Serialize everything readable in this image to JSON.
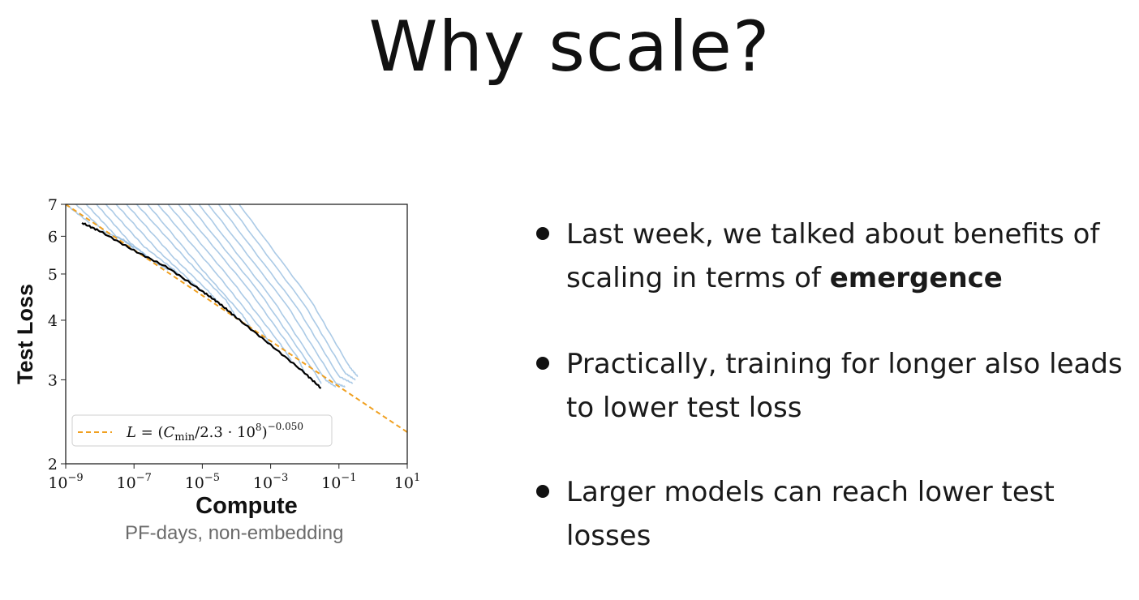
{
  "slide": {
    "title": "Why scale?",
    "bullets": [
      {
        "text": "Last week, we talked about benefits of scaling in terms of ",
        "bold": "emergence"
      },
      {
        "text": "Practically, training for longer also leads to lower test loss",
        "bold": ""
      },
      {
        "text": "Larger models can reach lower test losses",
        "bold": ""
      }
    ]
  },
  "chart_data": {
    "type": "line",
    "xlabel": "Compute",
    "xsublabel": "PF-days, non-embedding",
    "ylabel": "Test Loss",
    "xscale": "log",
    "yscale": "log",
    "xlim": [
      1e-09,
      10
    ],
    "ylim": [
      2,
      7
    ],
    "xticks": [
      1e-09,
      1e-07,
      1e-05,
      0.001,
      0.1,
      10
    ],
    "xtick_labels": [
      {
        "base": "10",
        "exp": "−9"
      },
      {
        "base": "10",
        "exp": "−7"
      },
      {
        "base": "10",
        "exp": "−5"
      },
      {
        "base": "10",
        "exp": "−3"
      },
      {
        "base": "10",
        "exp": "−1"
      },
      {
        "base": "10",
        "exp": "1"
      }
    ],
    "yticks": [
      2,
      3,
      4,
      5,
      6,
      7
    ],
    "ytick_labels": [
      "2",
      "3",
      "4",
      "5",
      "6",
      "7"
    ],
    "legend": {
      "placement": "lower-left",
      "entries": [
        {
          "name": "fit",
          "label": "L = (C_min/2.3 · 10^8)^−0.050",
          "style": "dashed",
          "color": "#f0a020"
        }
      ]
    },
    "colors": {
      "curves": "#8fb8dd",
      "frontier": "#000000",
      "fit": "#f0a020"
    },
    "series": [
      {
        "name": "fit",
        "x": [
          1e-09,
          10
        ],
        "y": [
          7.0,
          2.33
        ]
      },
      {
        "name": "frontier",
        "x": [
          3e-09,
          1e-08,
          1e-07,
          1e-06,
          1e-05,
          3e-05,
          0.0001,
          0.001,
          0.01,
          0.03
        ],
        "y": [
          6.4,
          6.15,
          5.6,
          5.15,
          4.6,
          4.35,
          4.05,
          3.55,
          3.1,
          2.88
        ]
      }
    ],
    "training_curves": [
      {
        "x": [
          1e-09,
          5e-09
        ],
        "y": [
          7.0,
          6.4
        ]
      },
      {
        "x": [
          2e-09,
          1.5e-08,
          5e-08,
          1e-07
        ],
        "y": [
          7.0,
          6.1,
          5.9,
          5.65
        ]
      },
      {
        "x": [
          4e-09,
          3e-08,
          1.5e-07,
          3e-07
        ],
        "y": [
          7.0,
          6.0,
          5.6,
          5.35
        ]
      },
      {
        "x": [
          8e-09,
          8e-08,
          4e-07,
          1e-06
        ],
        "y": [
          7.0,
          5.8,
          5.3,
          5.1
        ]
      },
      {
        "x": [
          1.5e-08,
          2e-07,
          1.5e-06,
          3e-06
        ],
        "y": [
          7.0,
          5.7,
          5.1,
          4.85
        ]
      },
      {
        "x": [
          3e-08,
          5e-07,
          5e-06,
          1e-05
        ],
        "y": [
          7.0,
          5.6,
          4.8,
          4.6
        ]
      },
      {
        "x": [
          6e-08,
          1.5e-06,
          1.5e-05,
          3e-05
        ],
        "y": [
          7.0,
          5.4,
          4.6,
          4.35
        ]
      },
      {
        "x": [
          1.2e-07,
          4e-06,
          5e-05,
          0.0001
        ],
        "y": [
          7.0,
          5.3,
          4.4,
          4.05
        ]
      },
      {
        "x": [
          2.5e-07,
          1e-05,
          0.00015,
          0.0003
        ],
        "y": [
          7.0,
          5.1,
          4.1,
          3.8
        ]
      },
      {
        "x": [
          5e-07,
          3e-05,
          0.0005,
          0.001
        ],
        "y": [
          7.0,
          4.95,
          3.85,
          3.55
        ]
      },
      {
        "x": [
          1e-06,
          8e-05,
          0.002,
          0.004
        ],
        "y": [
          7.0,
          4.8,
          3.55,
          3.3
        ]
      },
      {
        "x": [
          2e-06,
          0.0002,
          0.006,
          0.01
        ],
        "y": [
          7.0,
          4.7,
          3.35,
          3.1
        ]
      },
      {
        "x": [
          4e-06,
          0.0005,
          0.02,
          0.03
        ],
        "y": [
          7.0,
          4.55,
          3.1,
          2.95
        ]
      },
      {
        "x": [
          8e-06,
          0.0012,
          0.04,
          0.08
        ],
        "y": [
          7.0,
          4.4,
          3.0,
          2.9
        ]
      },
      {
        "x": [
          1.5e-05,
          0.003,
          0.08,
          0.15
        ],
        "y": [
          7.0,
          4.3,
          2.95,
          2.9
        ]
      },
      {
        "x": [
          3e-05,
          0.006,
          0.1,
          0.25
        ],
        "y": [
          7.0,
          4.25,
          3.05,
          2.95
        ]
      },
      {
        "x": [
          6e-05,
          0.01,
          0.15,
          0.3
        ],
        "y": [
          7.0,
          4.3,
          3.1,
          3.0
        ]
      },
      {
        "x": [
          0.00012,
          0.015,
          0.2,
          0.35
        ],
        "y": [
          7.0,
          4.4,
          3.2,
          3.05
        ]
      }
    ]
  }
}
